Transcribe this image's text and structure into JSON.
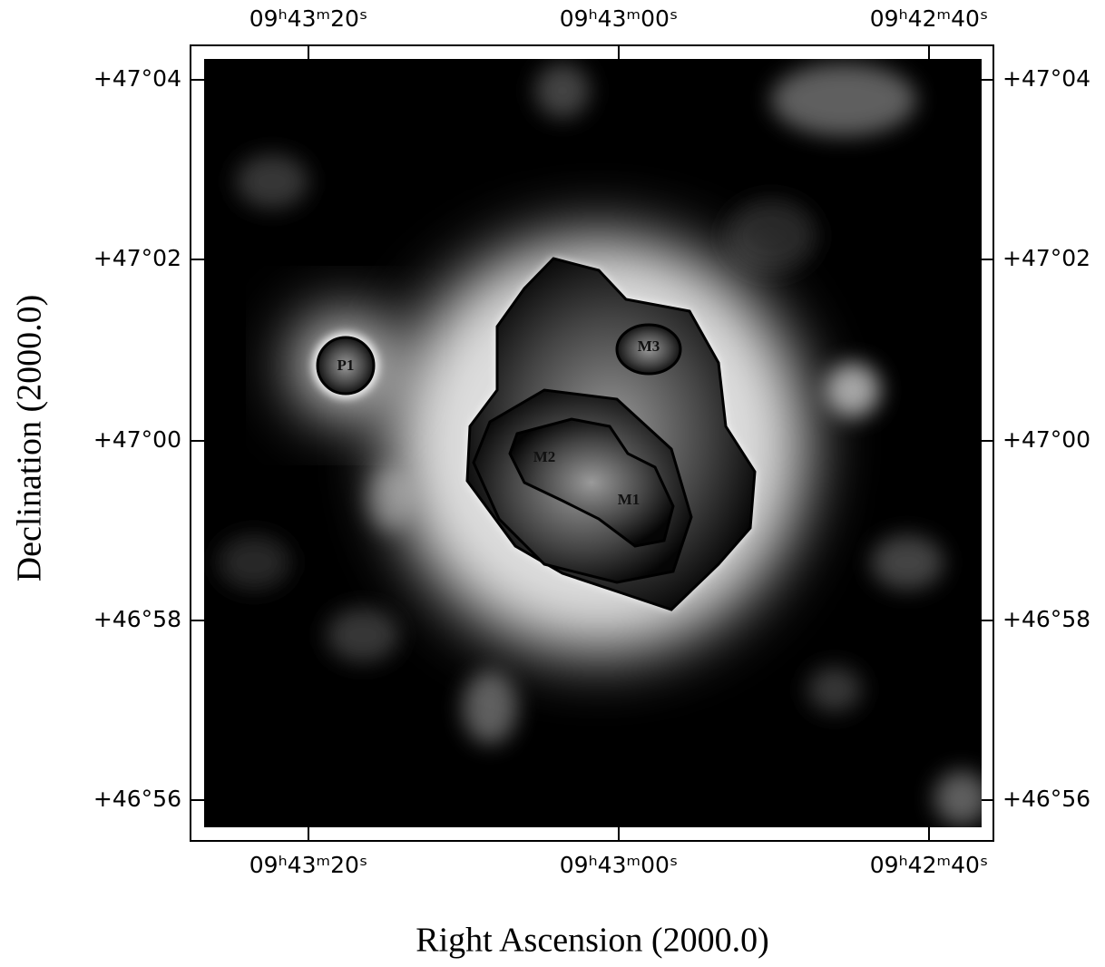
{
  "figure": {
    "x_axis_label": "Right Ascension (2000.0)",
    "y_axis_label": "Declination (2000.0)",
    "ra_ticks": [
      "09ʰ43ᵐ20ˢ",
      "09ʰ43ᵐ00ˢ",
      "09ʰ42ᵐ40ˢ"
    ],
    "dec_ticks": [
      "+47°04",
      "+47°02",
      "+47°00",
      "+46°58",
      "+46°56"
    ],
    "sources": [
      "P1",
      "M3",
      "M2",
      "M1"
    ]
  }
}
